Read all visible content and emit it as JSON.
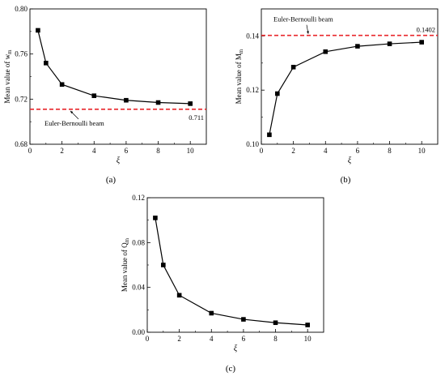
{
  "chart_data": [
    {
      "id": "a",
      "type": "line",
      "caption": "(a)",
      "xlabel": "ξ",
      "ylabel": "Mean value of w",
      "ylabel_sub": "m",
      "xlim": [
        0,
        11
      ],
      "ylim": [
        0.68,
        0.8
      ],
      "xticks": [
        0,
        2,
        4,
        6,
        8,
        10
      ],
      "yticks": [
        0.68,
        0.72,
        0.76,
        0.8
      ],
      "ytick_labels": [
        "0.68",
        "0.72",
        "0.76",
        "0.80"
      ],
      "series": [
        {
          "x": [
            0.5,
            1,
            2,
            4,
            6,
            8,
            10
          ],
          "y": [
            0.781,
            0.752,
            0.733,
            0.723,
            0.719,
            0.717,
            0.716
          ]
        }
      ],
      "reference": {
        "value": 0.711,
        "value_label": "0.711",
        "label": "Euler-Bernoulli beam",
        "color": "#e8262b"
      }
    },
    {
      "id": "b",
      "type": "line",
      "caption": "(b)",
      "xlabel": "ξ",
      "ylabel": "Mean value of M",
      "ylabel_sub": "m",
      "xlim": [
        0,
        11
      ],
      "ylim": [
        0.1,
        0.15
      ],
      "xticks": [
        0,
        2,
        4,
        6,
        8,
        10
      ],
      "yticks": [
        0.1,
        0.12,
        0.14
      ],
      "ytick_labels": [
        "0.10",
        "0.12",
        "0.14"
      ],
      "series": [
        {
          "x": [
            0.5,
            1,
            2,
            4,
            6,
            8,
            10
          ],
          "y": [
            0.1035,
            0.1187,
            0.1285,
            0.1342,
            0.1362,
            0.1371,
            0.1377
          ]
        }
      ],
      "reference": {
        "value": 0.1402,
        "value_label": "0.1402",
        "label": "Euler-Bernoulli beam",
        "color": "#e8262b"
      }
    },
    {
      "id": "c",
      "type": "line",
      "caption": "(c)",
      "xlabel": "ξ",
      "ylabel": "Mean value of Q",
      "ylabel_sub": "m",
      "xlim": [
        0,
        11
      ],
      "ylim": [
        0.0,
        0.12
      ],
      "xticks": [
        0,
        2,
        4,
        6,
        8,
        10
      ],
      "yticks": [
        0.0,
        0.04,
        0.08,
        0.12
      ],
      "ytick_labels": [
        "0.00",
        "0.04",
        "0.08",
        "0.12"
      ],
      "series": [
        {
          "x": [
            0.5,
            1,
            2,
            4,
            6,
            8,
            10
          ],
          "y": [
            0.102,
            0.06,
            0.033,
            0.017,
            0.0115,
            0.0085,
            0.0065
          ]
        }
      ]
    }
  ]
}
